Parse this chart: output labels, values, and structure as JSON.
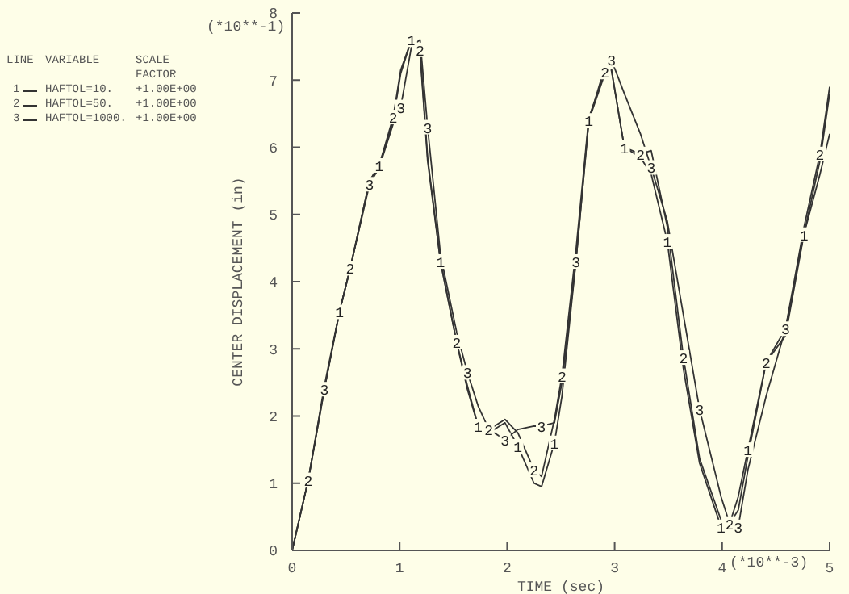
{
  "chart_data": {
    "type": "line",
    "xlabel": "TIME (sec)",
    "ylabel": "CENTER DISPLACEMENT (in)",
    "annotations": [
      "(*10**-1)",
      "(*10**-3)",
      "LINE",
      "VARIABLE",
      "SCALE\nFACTOR",
      "1",
      "+1.00E+00",
      "2",
      "+1.00E+00",
      "3",
      "+1.00E+00"
    ],
    "x": [
      0,
      0.15,
      0.3,
      0.44,
      0.54,
      0.72,
      0.81,
      0.94,
      1.01,
      1.11,
      1.19,
      1.26,
      1.38,
      1.53,
      1.63,
      1.73,
      1.83,
      1.98,
      2.1,
      2.25,
      2.32,
      2.44,
      2.51,
      2.64,
      2.76,
      2.91,
      2.97,
      3.09,
      3.24,
      3.34,
      3.49,
      3.64,
      3.79,
      3.99,
      4.07,
      4.15,
      4.24,
      4.41,
      4.59,
      4.76,
      4.91,
      5.0
    ],
    "series": [
      {
        "name": "HAFTOL=10.",
        "color": "#333333",
        "values": [
          0,
          1.05,
          2.4,
          3.55,
          4.2,
          5.5,
          5.73,
          6.4,
          7.1,
          7.6,
          7.4,
          5.8,
          4.3,
          3.1,
          2.4,
          1.85,
          1.75,
          1.9,
          1.55,
          1.0,
          0.95,
          1.6,
          2.3,
          4.3,
          6.4,
          7.1,
          7.15,
          6.0,
          5.85,
          5.6,
          4.6,
          2.7,
          1.3,
          0.35,
          0.4,
          0.8,
          1.5,
          2.8,
          3.2,
          4.7,
          5.8,
          6.8
        ]
      },
      {
        "name": "HAFTOL=50.",
        "color": "#333333",
        "values": [
          0,
          1.05,
          2.45,
          3.55,
          4.2,
          5.5,
          5.73,
          6.45,
          7.15,
          7.6,
          7.45,
          5.85,
          4.3,
          3.1,
          2.45,
          1.85,
          1.8,
          1.95,
          1.75,
          1.2,
          1.1,
          1.95,
          2.6,
          4.46,
          6.44,
          7.12,
          7.16,
          6.0,
          5.9,
          5.95,
          4.82,
          2.87,
          1.37,
          0.45,
          0.4,
          0.6,
          1.4,
          2.8,
          3.3,
          4.8,
          5.9,
          6.9
        ]
      },
      {
        "name": "HAFTOL=1000.",
        "color": "#333333",
        "values": [
          0,
          1.05,
          2.4,
          3.55,
          4.2,
          5.45,
          5.7,
          6.35,
          6.6,
          7.5,
          7.6,
          6.3,
          4.4,
          3.25,
          2.65,
          2.15,
          1.8,
          1.65,
          1.8,
          1.85,
          1.85,
          1.9,
          2.5,
          4.3,
          6.4,
          7.2,
          7.3,
          6.8,
          6.2,
          5.7,
          4.9,
          3.5,
          2.1,
          0.8,
          0.4,
          0.35,
          1.2,
          2.3,
          3.3,
          4.7,
          5.6,
          6.2
        ]
      }
    ],
    "xlim": [
      0,
      5
    ],
    "xticks": [
      0,
      1,
      2,
      3,
      4,
      5
    ],
    "ylim": [
      0,
      8
    ],
    "yticks": [
      0,
      1,
      2,
      3,
      4,
      5,
      6,
      7,
      8
    ],
    "legend": "left",
    "line_style": "solid"
  }
}
